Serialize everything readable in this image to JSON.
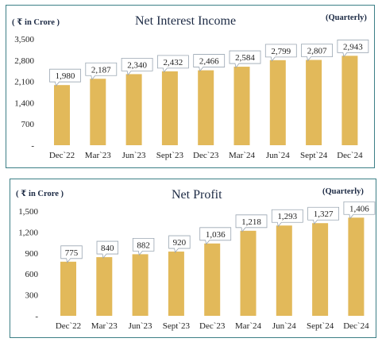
{
  "charts": [
    {
      "unit_label": "( ₹ in Crore )",
      "title": "Net Interest Income",
      "frequency_label": "(Quarterly)"
    },
    {
      "unit_label": "( ₹ in Crore )",
      "title": "Net Profit",
      "frequency_label": "(Quarterly)"
    }
  ],
  "colors": {
    "bar": "#e2b95a",
    "label_border": "#9aa6b2",
    "axis_text": "#222222",
    "title_text": "#1c2a44",
    "panel_border": "#3c7f86"
  },
  "chart_data": [
    {
      "type": "bar",
      "title": "Net Interest Income",
      "unit": "( ₹ in Crore )",
      "categories": [
        "Dec`22",
        "Mar`23",
        "Jun`23",
        "Sept`23",
        "Dec`23",
        "Mar`24",
        "Jun`24",
        "Sept`24",
        "Dec`24"
      ],
      "values": [
        1980,
        2187,
        2340,
        2432,
        2466,
        2584,
        2799,
        2807,
        2943
      ],
      "value_labels": [
        "1,980",
        "2,187",
        "2,340",
        "2,432",
        "2,466",
        "2,584",
        "2,799",
        "2,807",
        "2,943"
      ],
      "yticks": [
        "-",
        "700",
        "1,400",
        "2,100",
        "2,800",
        "3,500"
      ],
      "ylim": [
        0,
        3500
      ],
      "grid": false
    },
    {
      "type": "bar",
      "title": "Net Profit",
      "unit": "( ₹ in Crore )",
      "categories": [
        "Dec`22",
        "Mar`23",
        "Jun`23",
        "Sept`23",
        "Dec`23",
        "Mar`24",
        "Jun`24",
        "Sept`24",
        "Dec`24"
      ],
      "values": [
        775,
        840,
        882,
        920,
        1036,
        1218,
        1293,
        1327,
        1406
      ],
      "value_labels": [
        "775",
        "840",
        "882",
        "920",
        "1,036",
        "1,218",
        "1,293",
        "1,327",
        "1,406"
      ],
      "yticks": [
        "-",
        "300",
        "600",
        "900",
        "1,200",
        "1,500"
      ],
      "ylim": [
        0,
        1500
      ],
      "grid": false
    }
  ]
}
